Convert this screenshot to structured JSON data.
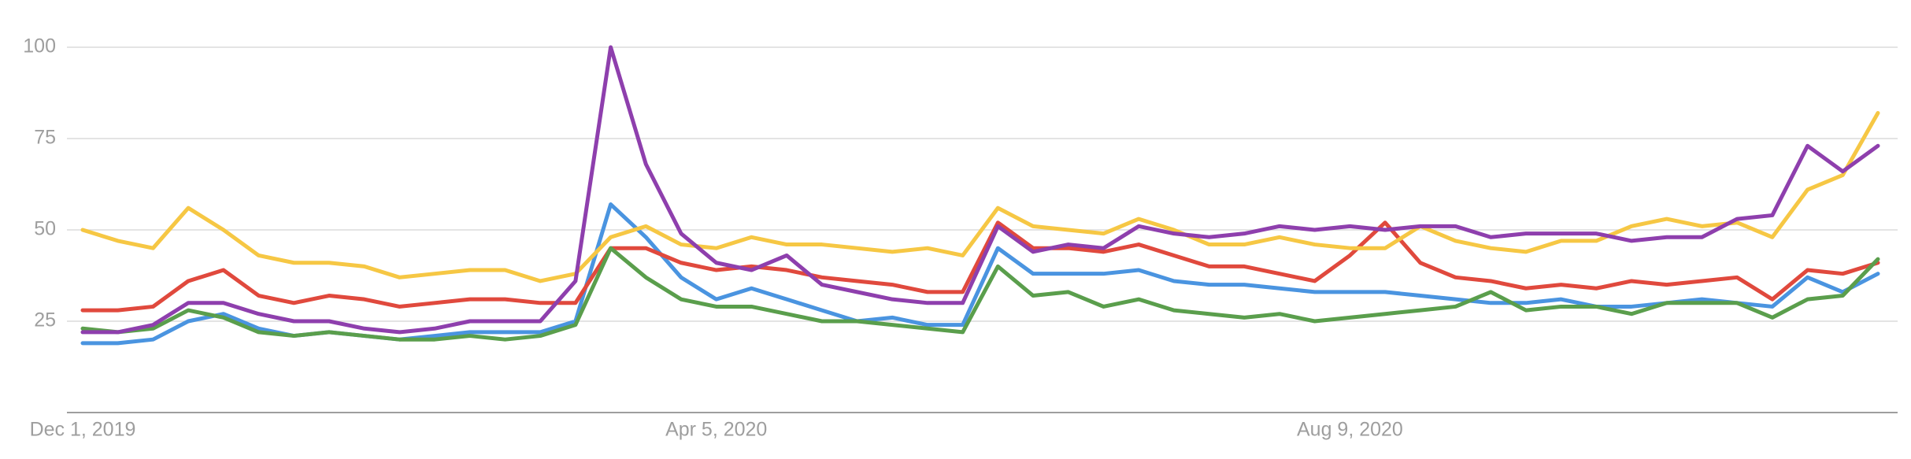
{
  "chart_data": {
    "type": "line",
    "categories": [
      "Dec 1, 2019",
      null,
      null,
      null,
      null,
      null,
      null,
      null,
      null,
      null,
      null,
      null,
      null,
      null,
      null,
      null,
      null,
      null,
      "Apr 5, 2020",
      null,
      null,
      null,
      null,
      null,
      null,
      null,
      null,
      null,
      null,
      null,
      null,
      null,
      null,
      null,
      null,
      null,
      "Aug 9, 2020",
      null,
      null,
      null,
      null,
      null,
      null,
      null,
      null,
      null,
      null,
      null,
      null,
      null,
      null,
      null
    ],
    "series": [
      {
        "color": "#4a94e0",
        "values": [
          19,
          19,
          20,
          25,
          27,
          23,
          21,
          22,
          21,
          20,
          21,
          22,
          22,
          22,
          25,
          57,
          48,
          37,
          31,
          34,
          31,
          28,
          25,
          26,
          24,
          24,
          45,
          38,
          38,
          38,
          39,
          36,
          35,
          35,
          34,
          33,
          33,
          33,
          32,
          31,
          30,
          30,
          31,
          29,
          29,
          30,
          31,
          30,
          29,
          37,
          33,
          38
        ]
      },
      {
        "color": "#e0493d",
        "values": [
          28,
          28,
          29,
          36,
          39,
          32,
          30,
          32,
          31,
          29,
          30,
          31,
          31,
          30,
          30,
          45,
          45,
          41,
          39,
          40,
          39,
          37,
          36,
          35,
          33,
          33,
          52,
          45,
          45,
          44,
          46,
          43,
          40,
          40,
          38,
          36,
          43,
          52,
          41,
          37,
          36,
          34,
          35,
          34,
          36,
          35,
          36,
          37,
          31,
          39,
          38,
          41
        ]
      },
      {
        "color": "#f6c744",
        "values": [
          50,
          47,
          45,
          56,
          50,
          43,
          41,
          41,
          40,
          37,
          38,
          39,
          39,
          36,
          38,
          48,
          51,
          46,
          45,
          48,
          46,
          46,
          45,
          44,
          45,
          43,
          56,
          51,
          50,
          49,
          53,
          50,
          46,
          46,
          48,
          46,
          45,
          45,
          51,
          47,
          45,
          44,
          47,
          47,
          51,
          53,
          51,
          52,
          48,
          61,
          65,
          82
        ]
      },
      {
        "color": "#5a9e4c",
        "values": [
          23,
          22,
          23,
          28,
          26,
          22,
          21,
          22,
          21,
          20,
          20,
          21,
          20,
          21,
          24,
          45,
          37,
          31,
          29,
          29,
          27,
          25,
          25,
          24,
          23,
          22,
          40,
          32,
          33,
          29,
          31,
          28,
          27,
          26,
          27,
          25,
          26,
          27,
          28,
          29,
          33,
          28,
          29,
          29,
          27,
          30,
          30,
          30,
          26,
          31,
          32,
          42
        ]
      },
      {
        "color": "#8e3fad",
        "values": [
          22,
          22,
          24,
          30,
          30,
          27,
          25,
          25,
          23,
          22,
          23,
          25,
          25,
          25,
          36,
          100,
          68,
          49,
          41,
          39,
          43,
          35,
          33,
          31,
          30,
          30,
          51,
          44,
          46,
          45,
          51,
          49,
          48,
          49,
          51,
          50,
          51,
          50,
          51,
          51,
          48,
          49,
          49,
          49,
          47,
          48,
          48,
          53,
          54,
          73,
          66,
          73
        ]
      }
    ],
    "ylim": [
      0,
      100
    ],
    "yticks": [
      25,
      50,
      75,
      100
    ],
    "grid": true
  }
}
